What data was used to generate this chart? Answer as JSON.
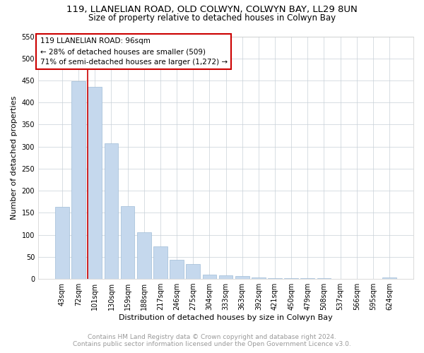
{
  "title_line1": "119, LLANELIAN ROAD, OLD COLWYN, COLWYN BAY, LL29 8UN",
  "title_line2": "Size of property relative to detached houses in Colwyn Bay",
  "xlabel": "Distribution of detached houses by size in Colwyn Bay",
  "ylabel": "Number of detached properties",
  "categories": [
    "43sqm",
    "72sqm",
    "101sqm",
    "130sqm",
    "159sqm",
    "188sqm",
    "217sqm",
    "246sqm",
    "275sqm",
    "304sqm",
    "333sqm",
    "363sqm",
    "392sqm",
    "421sqm",
    "450sqm",
    "479sqm",
    "508sqm",
    "537sqm",
    "566sqm",
    "595sqm",
    "624sqm"
  ],
  "values": [
    163,
    449,
    435,
    307,
    165,
    105,
    73,
    43,
    33,
    10,
    8,
    7,
    4,
    2,
    1,
    1,
    1,
    0,
    0,
    0,
    3
  ],
  "bar_color": "#c5d8ed",
  "bar_edge_color": "#a0bcd8",
  "property_index": 2,
  "property_label": "119 LLANELIAN ROAD: 96sqm",
  "annotation_line2": "← 28% of detached houses are smaller (509)",
  "annotation_line3": "71% of semi-detached houses are larger (1,272) →",
  "vline_color": "#cc0000",
  "annotation_box_edge_color": "#cc0000",
  "ylim": [
    0,
    550
  ],
  "yticks": [
    0,
    50,
    100,
    150,
    200,
    250,
    300,
    350,
    400,
    450,
    500,
    550
  ],
  "background_color": "#ffffff",
  "grid_color": "#c8d0d8",
  "footer_line1": "Contains HM Land Registry data © Crown copyright and database right 2024.",
  "footer_line2": "Contains public sector information licensed under the Open Government Licence v3.0.",
  "title_fontsize": 9.5,
  "subtitle_fontsize": 8.5,
  "axis_label_fontsize": 8,
  "tick_fontsize": 7,
  "annotation_fontsize": 7.5,
  "footer_fontsize": 6.5
}
